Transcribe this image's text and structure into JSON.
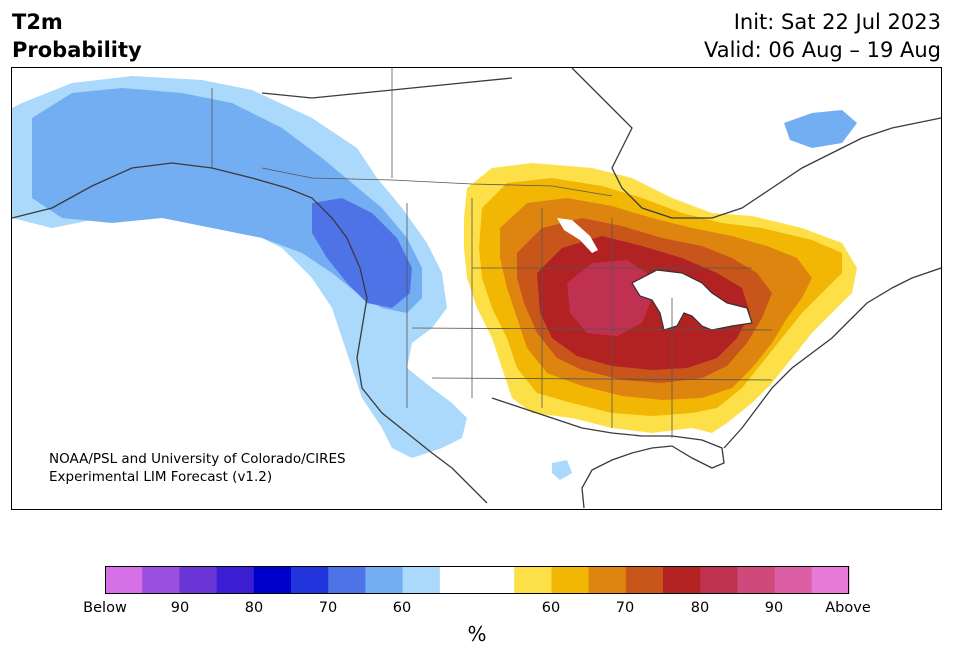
{
  "header": {
    "title_line1": "T2m",
    "title_line2": "Probability",
    "init": "Init: Sat 22 Jul 2023",
    "valid": "Valid: 06 Aug – 19 Aug"
  },
  "credit": {
    "line1": "NOAA/PSL and University of Colorado/CIRES",
    "line2": "Experimental LIM Forecast (v1.2)"
  },
  "colorbar": {
    "colors": [
      "#d670e6",
      "#9b50df",
      "#6b35d6",
      "#3b1dd3",
      "#0000cd",
      "#2235dc",
      "#4e73e6",
      "#74aef2",
      "#aad9fb",
      "#ffffff",
      "#ffffff",
      "#fde047",
      "#f2b705",
      "#de8510",
      "#c8561a",
      "#b22222",
      "#c03050",
      "#cf4a7a",
      "#dc5fa6",
      "#e87ad8"
    ],
    "tick_labels": [
      "Below",
      "90",
      "80",
      "70",
      "60",
      "60",
      "70",
      "80",
      "90",
      "Above"
    ],
    "unit": "%"
  },
  "legend_colors": {
    "below_light": "#aad9fb",
    "below_mid": "#74aef2",
    "below_strong": "#4e73e6",
    "above_light": "#fde047",
    "above_mid": "#f2b705",
    "above_70": "#de8510",
    "above_75": "#c8561a",
    "above_80": "#b22222",
    "above_85": "#c03050"
  }
}
